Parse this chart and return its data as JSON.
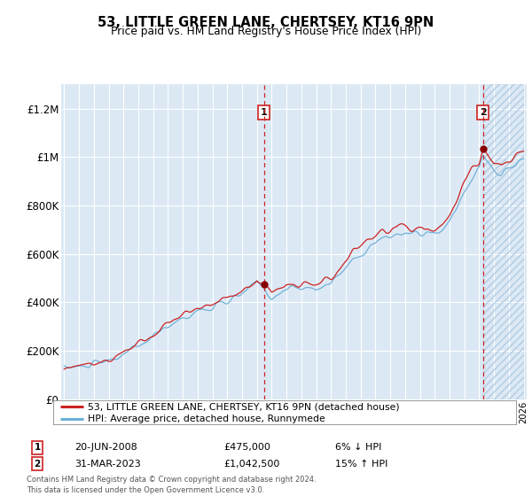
{
  "title": "53, LITTLE GREEN LANE, CHERTSEY, KT16 9PN",
  "subtitle": "Price paid vs. HM Land Registry's House Price Index (HPI)",
  "legend_line1": "53, LITTLE GREEN LANE, CHERTSEY, KT16 9PN (detached house)",
  "legend_line2": "HPI: Average price, detached house, Runnymede",
  "sale1_date": "20-JUN-2008",
  "sale1_price": "£475,000",
  "sale1_hpi": "6% ↓ HPI",
  "sale2_date": "31-MAR-2023",
  "sale2_price": "£1,042,500",
  "sale2_hpi": "15% ↑ HPI",
  "footnote": "Contains HM Land Registry data © Crown copyright and database right 2024.\nThis data is licensed under the Open Government Licence v3.0.",
  "ylim": [
    0,
    1300000
  ],
  "yticks": [
    0,
    200000,
    400000,
    600000,
    800000,
    1000000,
    1200000
  ],
  "ytick_labels": [
    "£0",
    "£200K",
    "£400K",
    "£600K",
    "£800K",
    "£1M",
    "£1.2M"
  ],
  "sale1_year": 2008.47,
  "sale1_value": 475000,
  "sale2_year": 2023.25,
  "sale2_value": 1042500,
  "hpi_color": "#6baed6",
  "price_color": "#cc2222",
  "background_color": "#dce9f5",
  "hatch_color": "#b8cfe0",
  "vline_color": "#cc2222",
  "marker_color": "#880000",
  "box_color": "#cc2222",
  "start_year": 1995,
  "end_year": 2026
}
